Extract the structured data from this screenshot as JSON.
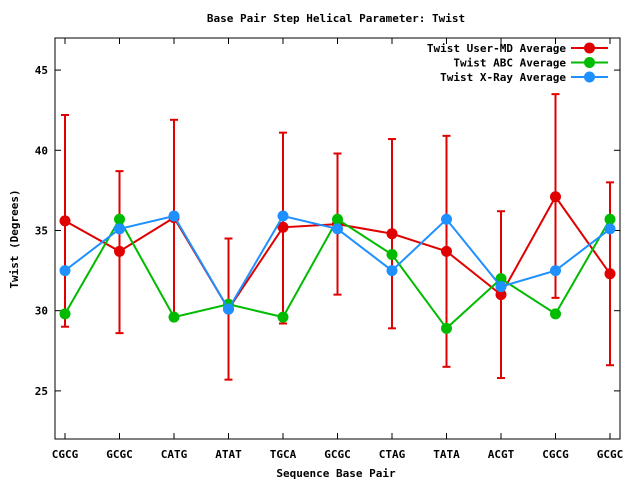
{
  "chart_data": {
    "type": "line",
    "title": "Base Pair Step Helical Parameter: Twist",
    "xlabel": "Sequence Base Pair",
    "ylabel": "Twist (Degrees)",
    "categories": [
      "CGCG",
      "GCGC",
      "CATG",
      "ATAT",
      "TGCA",
      "GCGC",
      "CTAG",
      "TATA",
      "ACGT",
      "CGCG",
      "GCGC"
    ],
    "ylim": [
      22,
      47
    ],
    "yticks": [
      25,
      30,
      35,
      40,
      45
    ],
    "legend_position": "top-right",
    "grid": false,
    "series": [
      {
        "name": "Twist User-MD Average",
        "color": "#e00000",
        "values": [
          35.6,
          33.7,
          35.8,
          30.1,
          35.2,
          35.4,
          34.8,
          33.7,
          31.0,
          37.1,
          32.3
        ],
        "error_low": [
          29.0,
          28.6,
          29.6,
          25.7,
          29.2,
          31.0,
          28.9,
          26.5,
          25.8,
          30.8,
          26.6
        ],
        "error_high": [
          42.2,
          38.7,
          41.9,
          34.5,
          41.1,
          39.8,
          40.7,
          40.9,
          36.2,
          43.5,
          38.0
        ]
      },
      {
        "name": "Twist ABC Average",
        "color": "#00bb00",
        "values": [
          29.8,
          35.7,
          29.6,
          30.4,
          29.6,
          35.7,
          33.5,
          28.9,
          32.0,
          29.8,
          35.7
        ]
      },
      {
        "name": "Twist X-Ray Average",
        "color": "#1e90ff",
        "values": [
          32.5,
          35.1,
          35.9,
          30.1,
          35.9,
          35.1,
          32.5,
          35.7,
          31.5,
          32.5,
          35.1
        ]
      }
    ]
  }
}
